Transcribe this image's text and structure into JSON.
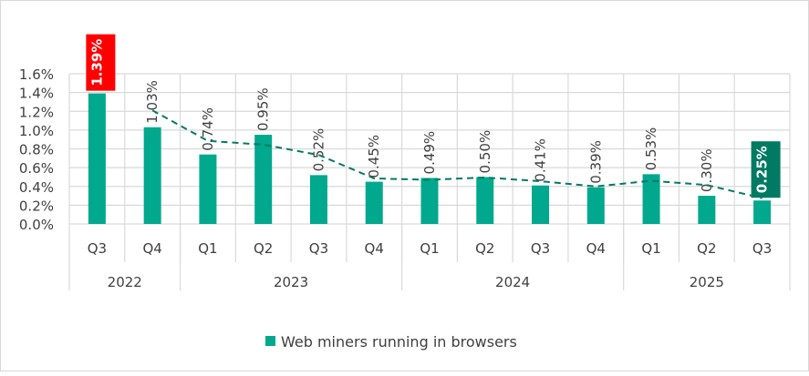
{
  "chart_data": {
    "type": "bar",
    "categories": [
      "Q3",
      "Q4",
      "Q1",
      "Q2",
      "Q3",
      "Q4",
      "Q1",
      "Q2",
      "Q3",
      "Q4",
      "Q1",
      "Q2",
      "Q3"
    ],
    "groups": [
      {
        "label": "2022",
        "count": 2
      },
      {
        "label": "2023",
        "count": 4
      },
      {
        "label": "2024",
        "count": 4
      },
      {
        "label": "2025",
        "count": 3
      }
    ],
    "series": [
      {
        "name": "Web miners running in browsers",
        "values": [
          1.39,
          1.03,
          0.74,
          0.95,
          0.52,
          0.45,
          0.49,
          0.5,
          0.41,
          0.39,
          0.53,
          0.3,
          0.25
        ],
        "color": "#00a88e"
      }
    ],
    "data_labels": [
      "1.39%",
      "1.03%",
      "0.74%",
      "0.95%",
      "0.52%",
      "0.45%",
      "0.49%",
      "0.50%",
      "0.41%",
      "0.39%",
      "0.53%",
      "0.30%",
      "0.25%"
    ],
    "highlight_labels": {
      "0": "#ff0000",
      "12": "#007a63"
    },
    "trendline": {
      "type": "moving-average",
      "period": 2,
      "style": "dashed",
      "color": "#007a63"
    },
    "yticks": [
      "0.0%",
      "0.2%",
      "0.4%",
      "0.6%",
      "0.8%",
      "1.0%",
      "1.2%",
      "1.4%",
      "1.6%"
    ],
    "ylim": [
      0,
      1.6
    ],
    "grid": true,
    "legend": "bottom"
  }
}
